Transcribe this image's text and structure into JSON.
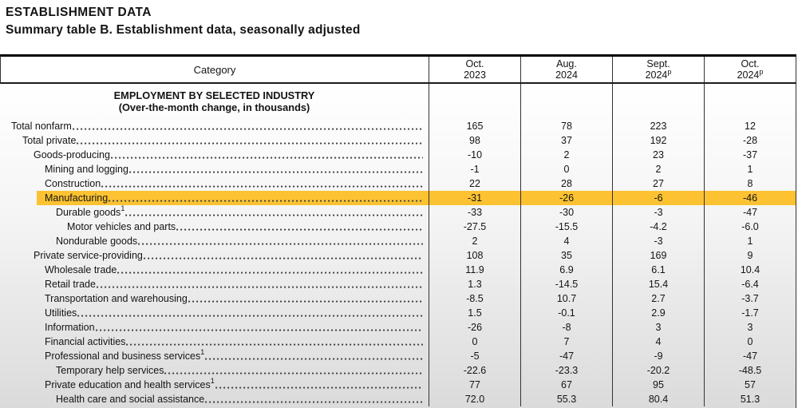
{
  "page": {
    "title": "ESTABLISHMENT DATA",
    "subtitle": "Summary table B. Establishment data, seasonally adjusted"
  },
  "table": {
    "category_header": "Category",
    "columns": [
      {
        "line1": "Oct.",
        "line2": "2023",
        "sup": ""
      },
      {
        "line1": "Aug.",
        "line2": "2024",
        "sup": ""
      },
      {
        "line1": "Sept.",
        "line2": "2024",
        "sup": "p"
      },
      {
        "line1": "Oct.",
        "line2": "2024",
        "sup": "p"
      }
    ],
    "section_heading_line1": "EMPLOYMENT BY SELECTED INDUSTRY",
    "section_heading_line2": "(Over-the-month change, in thousands)",
    "highlight_color": "#fcc232",
    "rows": [
      {
        "label": "Total nonfarm",
        "sup": "",
        "indent": 0,
        "highlight": false,
        "values": [
          "165",
          "78",
          "223",
          "12"
        ]
      },
      {
        "label": "Total private",
        "sup": "",
        "indent": 1,
        "highlight": false,
        "values": [
          "98",
          "37",
          "192",
          "-28"
        ]
      },
      {
        "label": "Goods-producing",
        "sup": "",
        "indent": 2,
        "highlight": false,
        "values": [
          "-10",
          "2",
          "23",
          "-37"
        ]
      },
      {
        "label": "Mining and logging",
        "sup": "",
        "indent": 3,
        "highlight": false,
        "values": [
          "-1",
          "0",
          "2",
          "1"
        ]
      },
      {
        "label": "Construction",
        "sup": "",
        "indent": 3,
        "highlight": false,
        "values": [
          "22",
          "28",
          "27",
          "8"
        ]
      },
      {
        "label": "Manufacturing",
        "sup": "",
        "indent": 3,
        "highlight": true,
        "values": [
          "-31",
          "-26",
          "-6",
          "-46"
        ]
      },
      {
        "label": "Durable goods",
        "sup": "1",
        "indent": 4,
        "highlight": false,
        "values": [
          "-33",
          "-30",
          "-3",
          "-47"
        ]
      },
      {
        "label": "Motor vehicles and parts",
        "sup": "",
        "indent": 5,
        "highlight": false,
        "values": [
          "-27.5",
          "-15.5",
          "-4.2",
          "-6.0"
        ]
      },
      {
        "label": "Nondurable goods",
        "sup": "",
        "indent": 4,
        "highlight": false,
        "values": [
          "2",
          "4",
          "-3",
          "1"
        ]
      },
      {
        "label": "Private service-providing",
        "sup": "",
        "indent": 2,
        "highlight": false,
        "values": [
          "108",
          "35",
          "169",
          "9"
        ]
      },
      {
        "label": "Wholesale trade",
        "sup": "",
        "indent": 3,
        "highlight": false,
        "values": [
          "11.9",
          "6.9",
          "6.1",
          "10.4"
        ]
      },
      {
        "label": "Retail trade",
        "sup": "",
        "indent": 3,
        "highlight": false,
        "values": [
          "1.3",
          "-14.5",
          "15.4",
          "-6.4"
        ]
      },
      {
        "label": "Transportation and warehousing",
        "sup": "",
        "indent": 3,
        "highlight": false,
        "values": [
          "-8.5",
          "10.7",
          "2.7",
          "-3.7"
        ]
      },
      {
        "label": "Utilities",
        "sup": "",
        "indent": 3,
        "highlight": false,
        "values": [
          "1.5",
          "-0.1",
          "2.9",
          "-1.7"
        ]
      },
      {
        "label": "Information",
        "sup": "",
        "indent": 3,
        "highlight": false,
        "values": [
          "-26",
          "-8",
          "3",
          "3"
        ]
      },
      {
        "label": "Financial activities",
        "sup": "",
        "indent": 3,
        "highlight": false,
        "values": [
          "0",
          "7",
          "4",
          "0"
        ]
      },
      {
        "label": "Professional and business services",
        "sup": "1",
        "indent": 3,
        "highlight": false,
        "values": [
          "-5",
          "-47",
          "-9",
          "-47"
        ]
      },
      {
        "label": "Temporary help services",
        "sup": "",
        "indent": 4,
        "highlight": false,
        "values": [
          "-22.6",
          "-23.3",
          "-20.2",
          "-48.5"
        ]
      },
      {
        "label": "Private education and health services",
        "sup": "1",
        "indent": 3,
        "highlight": false,
        "values": [
          "77",
          "67",
          "95",
          "57"
        ]
      },
      {
        "label": "Health care and social assistance",
        "sup": "",
        "indent": 4,
        "highlight": false,
        "values": [
          "72.0",
          "55.3",
          "80.4",
          "51.3"
        ]
      }
    ]
  }
}
